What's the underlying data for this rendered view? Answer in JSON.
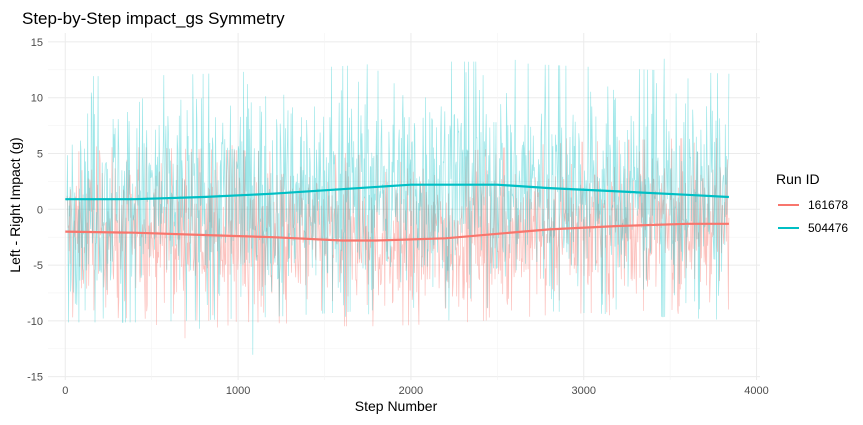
{
  "chart_data": {
    "type": "line",
    "title": "Step-by-Step impact_gs Symmetry",
    "xlabel": "Step Number",
    "ylabel": "Left - Right Impact (g)",
    "xlim": [
      -100,
      4020
    ],
    "ylim": [
      -15.3,
      15.8
    ],
    "x_ticks": [
      0,
      1000,
      2000,
      3000,
      4000
    ],
    "y_ticks": [
      -15,
      -10,
      -5,
      0,
      5,
      10,
      15
    ],
    "grid": true,
    "legend": {
      "title": "Run ID",
      "position": "right"
    },
    "series": [
      {
        "name": "161678",
        "color": "#F8766D",
        "raw_description": "noisy per-step differences, mostly between -12 and +3",
        "smooth": {
          "x": [
            0,
            400,
            800,
            1200,
            1600,
            1800,
            2200,
            2500,
            2800,
            3200,
            3600,
            3840
          ],
          "y": [
            -2.0,
            -2.1,
            -2.3,
            -2.5,
            -2.8,
            -2.8,
            -2.6,
            -2.2,
            -1.8,
            -1.5,
            -1.3,
            -1.3
          ]
        }
      },
      {
        "name": "504476",
        "color": "#00BFC4",
        "raw_description": "noisy per-step differences, mostly between -12 and +13",
        "smooth": {
          "x": [
            0,
            400,
            800,
            1200,
            1600,
            2000,
            2200,
            2500,
            2800,
            3200,
            3600,
            3840
          ],
          "y": [
            0.9,
            0.9,
            1.1,
            1.4,
            1.8,
            2.2,
            2.2,
            2.2,
            1.9,
            1.6,
            1.3,
            1.1
          ]
        }
      }
    ]
  }
}
